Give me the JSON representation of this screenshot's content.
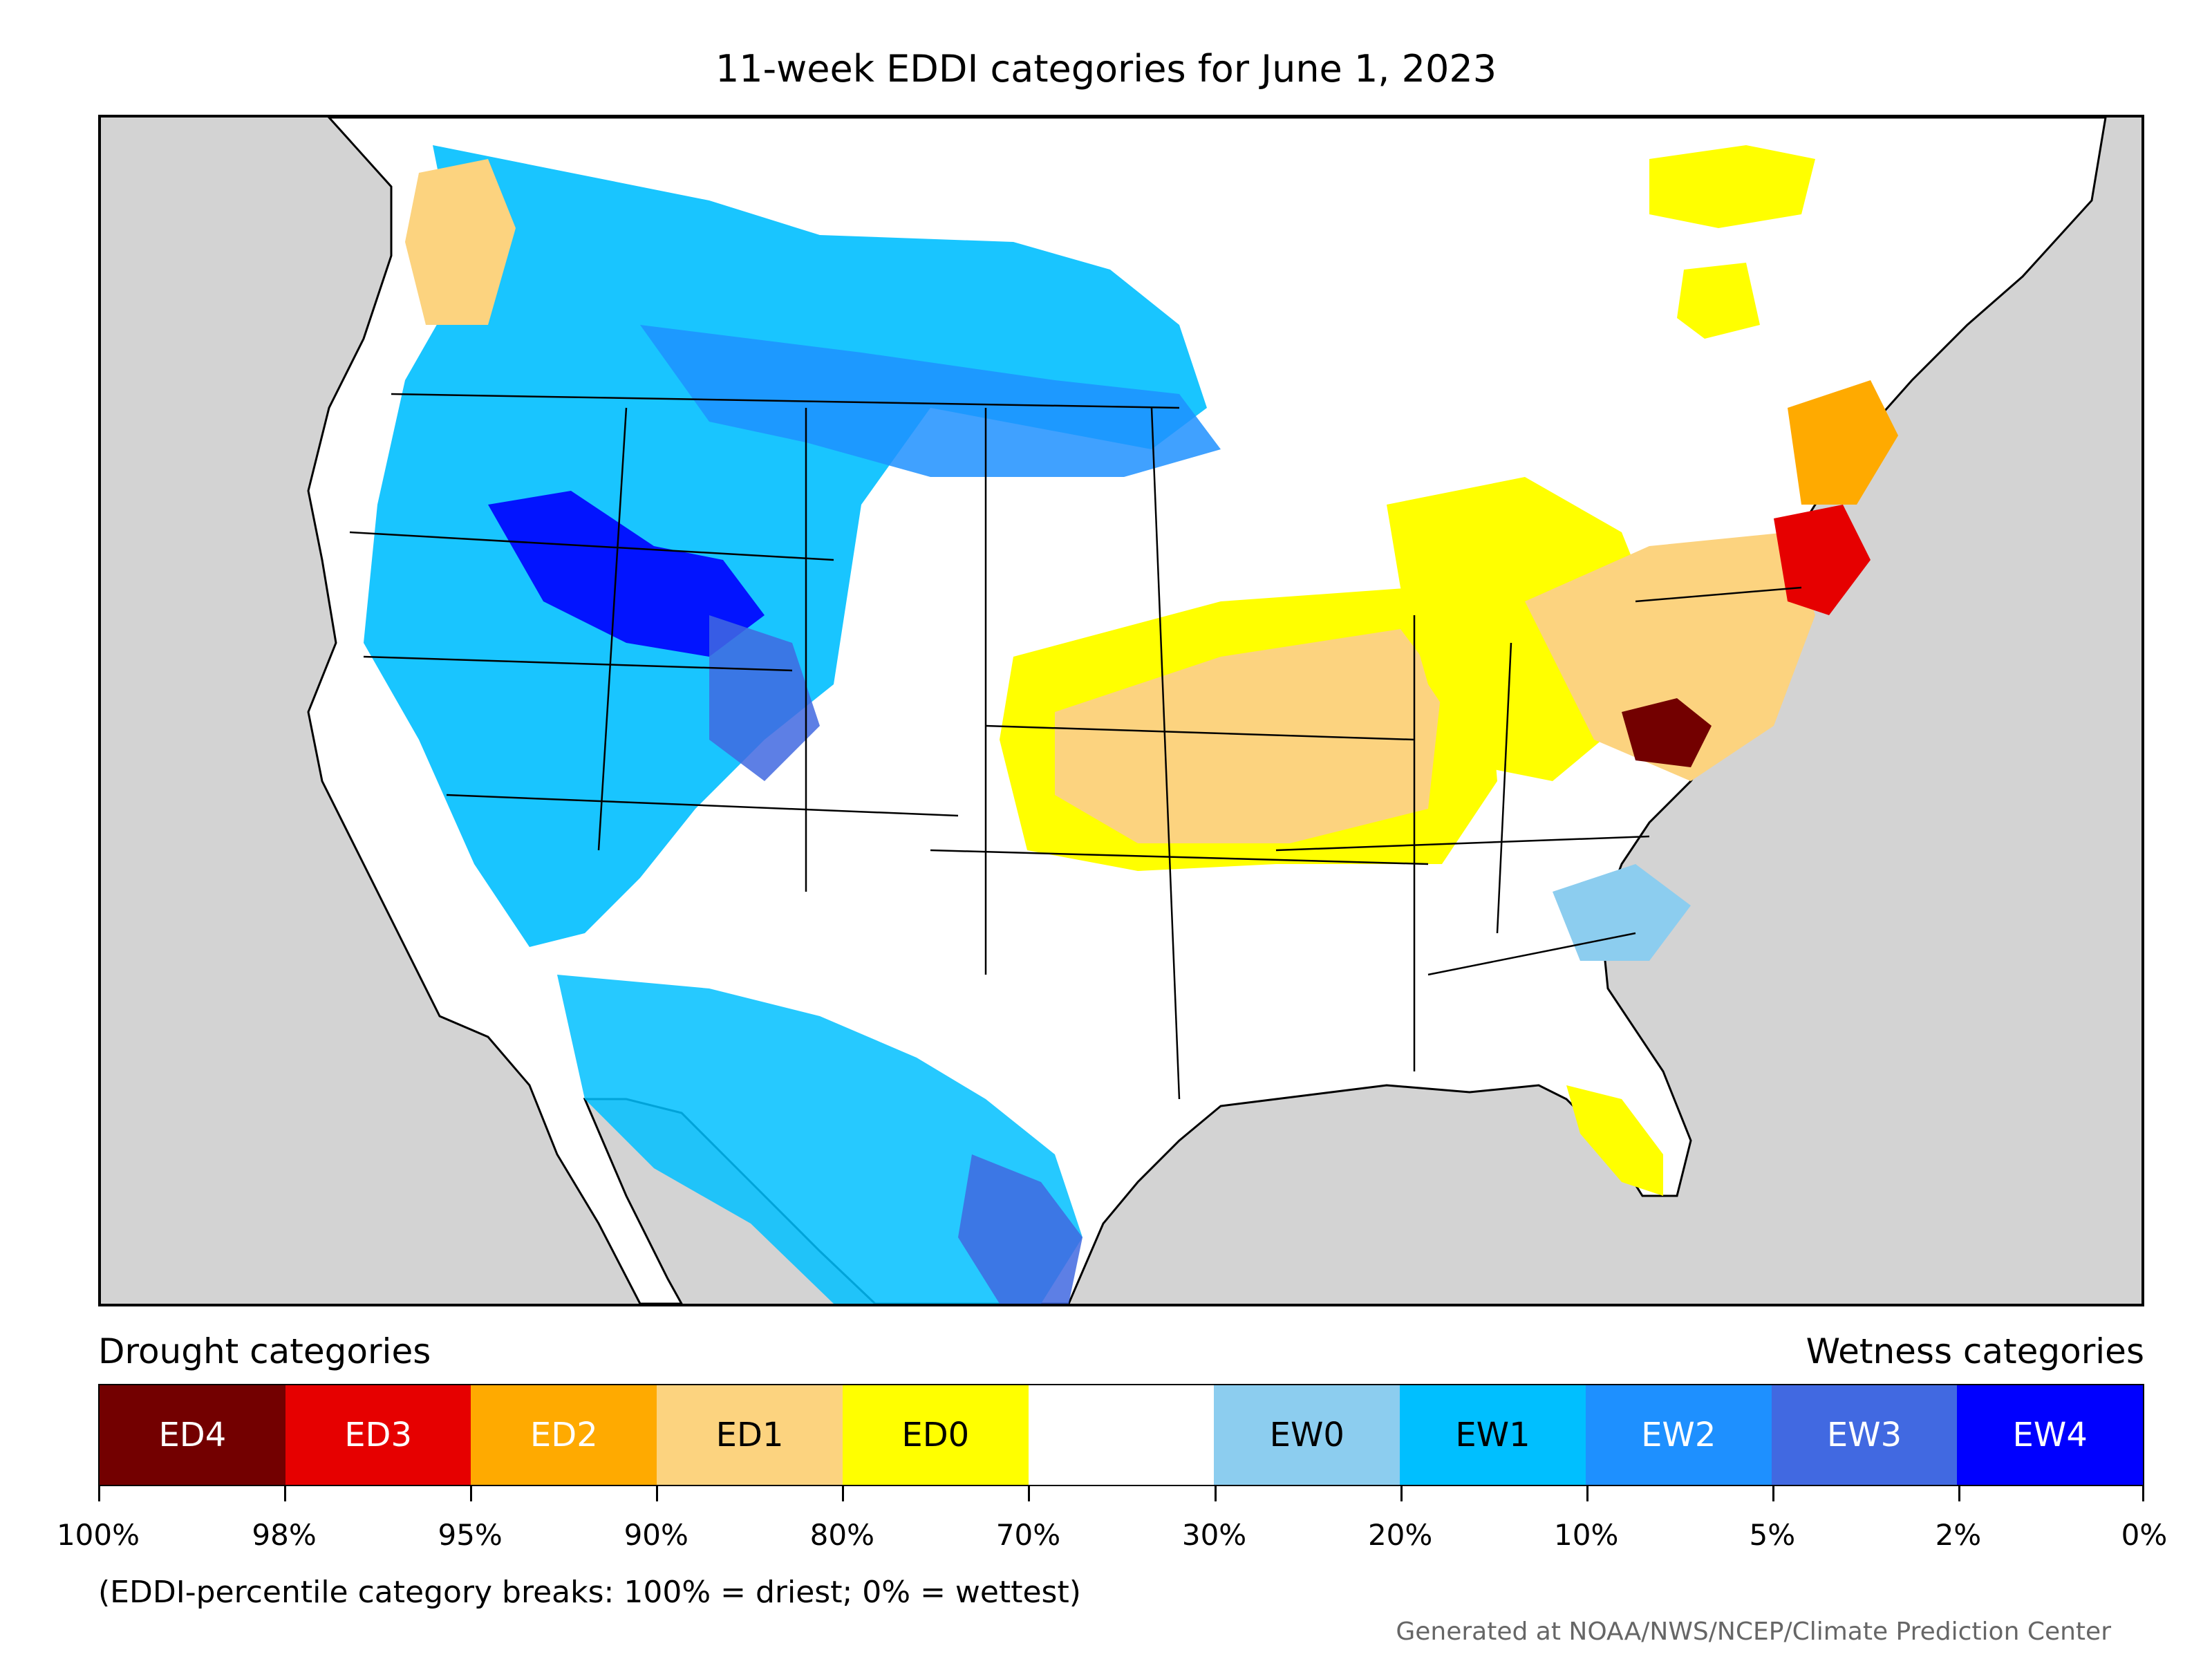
{
  "title": "11-week EDDI categories for June 1, 2023",
  "legend": {
    "drought_label": "Drought categories",
    "wetness_label": "Wetness categories",
    "categories": [
      {
        "label": "ED4",
        "color": "#730000",
        "text_color": "#ffffff"
      },
      {
        "label": "ED3",
        "color": "#e60000",
        "text_color": "#ffffff"
      },
      {
        "label": "ED2",
        "color": "#ffaa00",
        "text_color": "#ffffff"
      },
      {
        "label": "ED1",
        "color": "#fcd37f",
        "text_color": "#000000"
      },
      {
        "label": "ED0",
        "color": "#ffff00",
        "text_color": "#000000"
      },
      {
        "label": "",
        "color": "#ffffff",
        "text_color": "#000000"
      },
      {
        "label": "EW0",
        "color": "#8ccdef",
        "text_color": "#000000"
      },
      {
        "label": "EW1",
        "color": "#00bfff",
        "text_color": "#000000"
      },
      {
        "label": "EW2",
        "color": "#1e90ff",
        "text_color": "#ffffff"
      },
      {
        "label": "EW3",
        "color": "#4169e1",
        "text_color": "#ffffff"
      },
      {
        "label": "EW4",
        "color": "#0000ff",
        "text_color": "#ffffff"
      }
    ],
    "breaks": [
      "100%",
      "98%",
      "95%",
      "90%",
      "80%",
      "70%",
      "30%",
      "20%",
      "10%",
      "5%",
      "2%",
      "0%"
    ]
  },
  "note": "(EDDI-percentile category breaks: 100% = driest; 0% = wettest)",
  "credit": "Generated at NOAA/NWS/NCEP/Climate Prediction Center",
  "map": {
    "background_color": "#d3d3d3",
    "land_color": "#ffffff",
    "regions": [
      {
        "name": "pacific-northwest-wet",
        "category": "EW1"
      },
      {
        "name": "idaho-wyoming-very-wet",
        "category": "EW4"
      },
      {
        "name": "northern-plains-wet",
        "category": "EW2"
      },
      {
        "name": "southwest-wet",
        "category": "EW1"
      },
      {
        "name": "south-texas-wet",
        "category": "EW3"
      },
      {
        "name": "central-plains-dry",
        "category": "ED1"
      },
      {
        "name": "midwest-dry",
        "category": "ED0"
      },
      {
        "name": "mid-atlantic-extreme-dry",
        "category": "ED4"
      },
      {
        "name": "new-england-dry",
        "category": "ED3"
      },
      {
        "name": "florida-dry",
        "category": "ED0"
      },
      {
        "name": "quebec-dry",
        "category": "ED0"
      },
      {
        "name": "southeast-wet",
        "category": "EW0"
      }
    ]
  }
}
